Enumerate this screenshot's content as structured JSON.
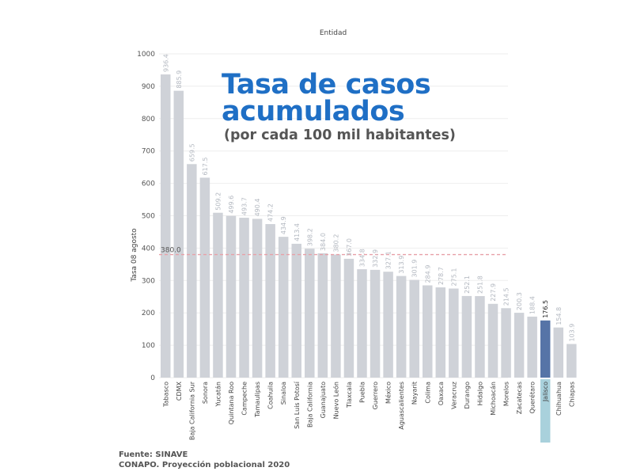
{
  "title_line1": "Tasa de casos",
  "title_line2": "acumulados",
  "subtitle": "(por cada 100 mil habitantes)",
  "source_line1": "Fuente: SINAVE",
  "source_line2": "CONAPO. Proyección poblacional 2020",
  "colors": {
    "bar": "#cfd2d8",
    "highlight": "#5674a7",
    "highlight_under": "#a9d1dc",
    "refline": "#e8a0a8"
  },
  "chart_data": {
    "type": "bar",
    "title": "",
    "xlabel": "Entidad",
    "ylabel": "Tasa 08 agosto",
    "ylim": [
      0,
      1000
    ],
    "yticks": [
      0,
      100,
      200,
      300,
      400,
      500,
      600,
      700,
      800,
      900,
      1000
    ],
    "grid": true,
    "reference_line": {
      "value": 380.0,
      "label": "380.0"
    },
    "highlight": "Jalisco",
    "categories": [
      "Tabasco",
      "CDMX",
      "Baja California Sur",
      "Sonora",
      "Yucatán",
      "Quintana Roo",
      "Campeche",
      "Tamaulipas",
      "Coahuila",
      "Sinaloa",
      "San Luis Potosí",
      "Baja California",
      "Guanajuato",
      "Nuevo León",
      "Tlaxcala",
      "Puebla",
      "Guerrero",
      "México",
      "Aguascalientes",
      "Nayarit",
      "Colima",
      "Oaxaca",
      "Veracruz",
      "Durango",
      "Hidalgo",
      "Michoacán",
      "Morelos",
      "Zacatecas",
      "Querétaro",
      "Jalisco",
      "Chihuahua",
      "Chiapas"
    ],
    "values": [
      936.4,
      885.9,
      659.5,
      617.5,
      509.2,
      499.6,
      493.7,
      490.4,
      474.2,
      434.9,
      413.4,
      398.2,
      384.0,
      380.2,
      367.0,
      334.8,
      332.9,
      327.1,
      313.9,
      301.9,
      284.9,
      278.7,
      275.1,
      252.1,
      251.8,
      227.9,
      214.5,
      200.3,
      188.4,
      176.5,
      154.8,
      103.9
    ],
    "value_labels": [
      "936.4",
      "885.9",
      "659.5",
      "617.5",
      "509.2",
      "499.6",
      "493.7",
      "490.4",
      "474.2",
      "434.9",
      "413.4",
      "398.2",
      "384.0",
      "380.2",
      "367.0",
      "334.8",
      "332.9",
      "327.1",
      "313.9",
      "301.9",
      "284.9",
      "278.7",
      "275.1",
      "252.1",
      "251.8",
      "227.9",
      "214.5",
      "200.3",
      "188.4",
      "176.5",
      "154.8",
      "103.9"
    ]
  }
}
